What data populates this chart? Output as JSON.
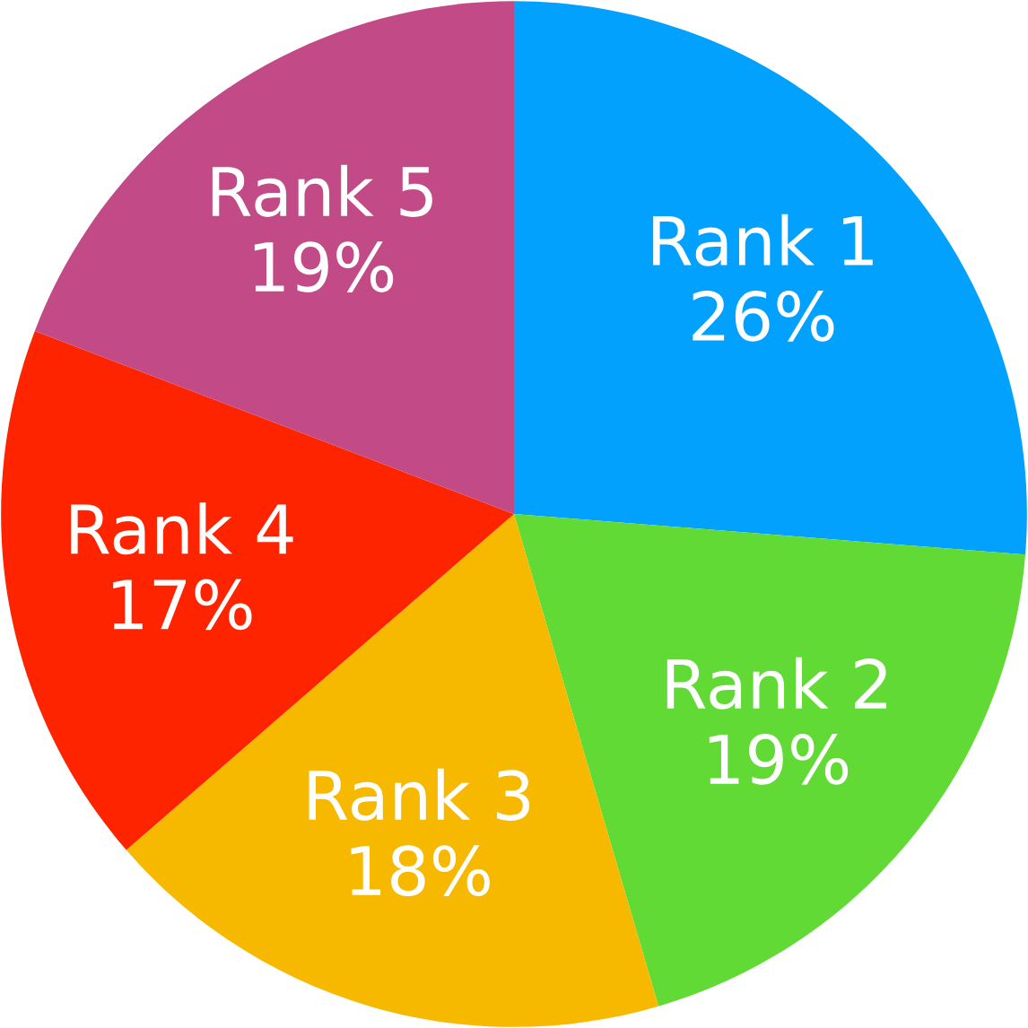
{
  "chart_data": {
    "type": "pie",
    "categories": [
      "Rank 1",
      "Rank 2",
      "Rank 3",
      "Rank 4",
      "Rank 5"
    ],
    "values": [
      26,
      19,
      18,
      17,
      19
    ],
    "value_labels": [
      "26%",
      "19%",
      "18%",
      "17%",
      "19%"
    ],
    "colors": [
      "#03a1fe",
      "#61da36",
      "#f7b800",
      "#fe2400",
      "#c24a86"
    ]
  }
}
